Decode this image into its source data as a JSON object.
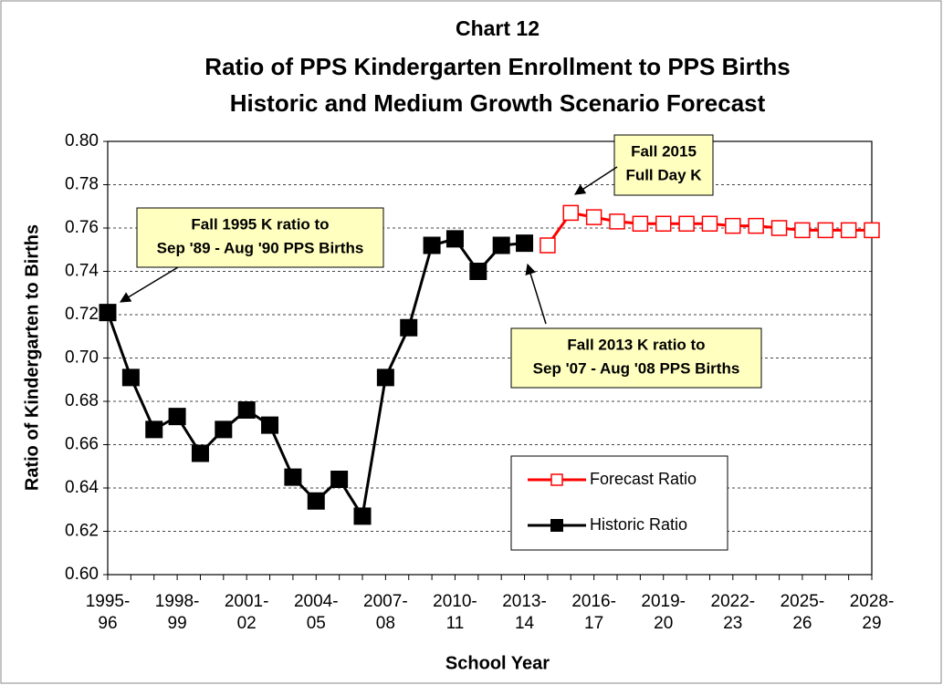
{
  "chart_data": {
    "type": "line",
    "title": "Chart 12",
    "subtitle": [
      "Ratio of PPS Kindergarten Enrollment to PPS Births",
      "Historic and Medium Growth Scenario Forecast"
    ],
    "x_label": "School Year",
    "y_label": "Ratio of Kindergarten to Births",
    "categories": [
      "1995-96",
      null,
      null,
      "1998-99",
      null,
      null,
      "2001-02",
      null,
      null,
      "2004-05",
      null,
      null,
      "2007-08",
      null,
      null,
      "2010-11",
      null,
      null,
      "2013-14",
      null,
      null,
      "2016-17",
      null,
      null,
      "2019-20",
      null,
      null,
      "2022-23",
      null,
      null,
      "2025-26",
      null,
      null,
      "2028-29"
    ],
    "series": [
      {
        "name": "Forecast Ratio",
        "color": "#ff0000",
        "values": [
          null,
          null,
          null,
          null,
          null,
          null,
          null,
          null,
          null,
          null,
          null,
          null,
          null,
          null,
          null,
          null,
          null,
          null,
          null,
          0.752,
          0.767,
          0.765,
          0.763,
          0.762,
          0.762,
          0.762,
          0.762,
          0.761,
          0.761,
          0.76,
          0.759,
          0.759,
          0.759,
          0.759
        ]
      },
      {
        "name": "Historic Ratio",
        "color": "#000000",
        "values": [
          0.721,
          0.691,
          0.667,
          0.673,
          0.656,
          0.667,
          0.676,
          0.669,
          0.645,
          0.634,
          0.644,
          0.627,
          0.691,
          0.714,
          0.752,
          0.755,
          0.74,
          0.752,
          0.753,
          null,
          null,
          null,
          null,
          null,
          null,
          null,
          null,
          null,
          null,
          null,
          null,
          null,
          null,
          null
        ]
      }
    ],
    "ylim": [
      0.6,
      0.8
    ],
    "yticks": [
      {
        "value": 0.6,
        "label": "0.60"
      },
      0.62,
      0.64,
      0.66,
      0.68,
      {
        "value": 0.7,
        "label": "0.70"
      },
      0.72,
      0.74,
      0.76,
      0.78,
      {
        "value": 0.8,
        "label": "0.80"
      }
    ],
    "grid": true,
    "annotations": [
      {
        "text": [
          "Fall 1995 K ratio to",
          "Sep '89 - Aug '90 PPS Births"
        ]
      },
      {
        "text": [
          "Fall 2015",
          "Full Day K"
        ]
      },
      {
        "text": [
          "Fall 2013 K ratio to",
          "Sep '07 - Aug '08 PPS Births"
        ]
      }
    ]
  }
}
